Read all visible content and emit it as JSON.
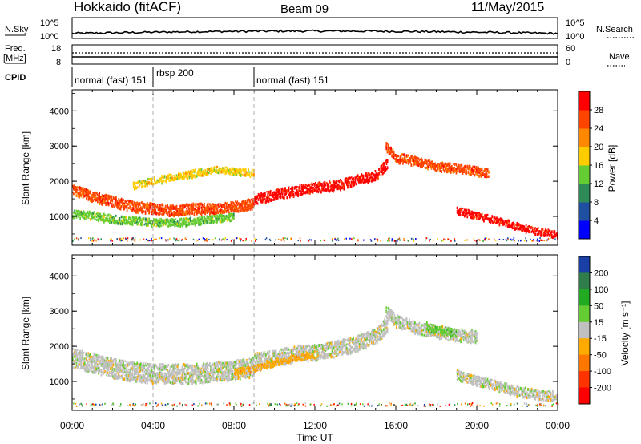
{
  "header": {
    "station": "Hokkaido (fitACF)",
    "beam": "Beam 09",
    "date": "11/May/2015"
  },
  "strips": {
    "nsky_label": "N.Sky",
    "nsearch_label": "N.Search",
    "nsky_ticks": [
      "10^5",
      "10^0"
    ],
    "nsky_right_ticks": [
      "10^5",
      "10^0"
    ],
    "freq_label": "Freq.",
    "freq_unit": "[MHz]",
    "freq_ticks": [
      "18",
      "8"
    ],
    "nave_label": "Nave",
    "nave_ticks": [
      "60",
      "0"
    ],
    "cpid_label": "CPID",
    "cpid_segments": [
      {
        "label": "normal (fast) 151",
        "start_hr": 0
      },
      {
        "label": "rbsp 200",
        "start_hr": 4
      },
      {
        "label": "normal (fast) 151",
        "start_hr": 9
      }
    ]
  },
  "chart_data": [
    {
      "type": "heatmap",
      "name": "power-panel",
      "ylabel": "Slant Range [km]",
      "yticks": [
        1000,
        2000,
        3000,
        4000
      ],
      "ylim": [
        180,
        4600
      ],
      "xlim": [
        0,
        24
      ],
      "colorbar": {
        "label": "Power [dB]",
        "ticks": [
          "4",
          "8",
          "12",
          "16",
          "20",
          "24",
          "28"
        ],
        "colors": [
          "#0000ff",
          "#1f4fa0",
          "#2e8b57",
          "#66cc33",
          "#ffcc00",
          "#ff8800",
          "#ff4400",
          "#ff0000"
        ]
      },
      "bands": [
        {
          "x": [
            0,
            1,
            2,
            3,
            4,
            5,
            6,
            7,
            8,
            9
          ],
          "y": [
            1800,
            1600,
            1450,
            1300,
            1250,
            1200,
            1250,
            1250,
            1300,
            1400
          ],
          "width": 300,
          "color_index": 6
        },
        {
          "x": [
            0,
            1,
            2,
            3,
            4,
            5,
            6,
            7,
            8
          ],
          "y": [
            1100,
            1050,
            950,
            900,
            850,
            850,
            900,
            950,
            1000
          ],
          "width": 220,
          "color_index": 3
        },
        {
          "x": [
            9,
            10,
            11,
            12,
            13,
            14,
            15,
            15.6
          ],
          "y": [
            1500,
            1650,
            1750,
            1850,
            1900,
            2050,
            2200,
            2550
          ],
          "width": 280,
          "color_index": 7
        },
        {
          "x": [
            15.5,
            16,
            17,
            18,
            19,
            20,
            20.6
          ],
          "y": [
            3000,
            2700,
            2600,
            2450,
            2400,
            2300,
            2250
          ],
          "width": 260,
          "color_index": 6
        },
        {
          "x": [
            19,
            20,
            21,
            22,
            23,
            24
          ],
          "y": [
            1200,
            1050,
            900,
            750,
            600,
            500
          ],
          "width": 200,
          "color_index": 7
        },
        {
          "x": [
            3,
            4,
            5,
            6,
            7,
            8,
            9
          ],
          "y": [
            1900,
            2050,
            2150,
            2250,
            2350,
            2300,
            2250
          ],
          "width": 200,
          "color_index": 4
        }
      ]
    },
    {
      "type": "heatmap",
      "name": "velocity-panel",
      "ylabel": "Slant Range [km]",
      "yticks": [
        1000,
        2000,
        3000,
        4000
      ],
      "ylim": [
        180,
        4600
      ],
      "xlim": [
        0,
        24
      ],
      "colorbar": {
        "label": "Velocity [m s⁻¹]",
        "ticks": [
          "200",
          "100",
          "50",
          "15",
          "-15",
          "-50",
          "-100",
          "-200"
        ],
        "colors": [
          "#1a3fa6",
          "#2e7d4a",
          "#22aa22",
          "#66cc33",
          "#c0c0c0",
          "#ffaa00",
          "#ff7700",
          "#ff3300",
          "#ff0000"
        ]
      },
      "bands": [
        {
          "x": [
            0,
            1,
            2,
            3,
            4,
            5,
            6,
            7,
            8,
            9
          ],
          "y": [
            1700,
            1550,
            1400,
            1300,
            1250,
            1250,
            1250,
            1300,
            1350,
            1450
          ],
          "width": 550,
          "color_index": 4
        },
        {
          "x": [
            9,
            10,
            11,
            12,
            13,
            14,
            15,
            15.6
          ],
          "y": [
            1600,
            1700,
            1800,
            1850,
            1950,
            2100,
            2300,
            2700
          ],
          "width": 450,
          "color_index": 4
        },
        {
          "x": [
            8,
            9,
            10,
            11,
            12
          ],
          "y": [
            1300,
            1400,
            1550,
            1700,
            1800
          ],
          "width": 180,
          "color_index": 5
        },
        {
          "x": [
            15.5,
            16,
            17,
            18,
            19,
            20
          ],
          "y": [
            3000,
            2750,
            2550,
            2450,
            2350,
            2300
          ],
          "width": 350,
          "color_index": 4
        },
        {
          "x": [
            17.5,
            18,
            18.5,
            19
          ],
          "y": [
            2600,
            2500,
            2450,
            2400
          ],
          "width": 220,
          "color_index": 3
        },
        {
          "x": [
            19,
            20,
            21,
            22,
            23,
            24
          ],
          "y": [
            1200,
            1050,
            900,
            750,
            650,
            600
          ],
          "width": 280,
          "color_index": 4
        }
      ]
    }
  ],
  "xaxis": {
    "ticks": [
      "00:00",
      "04:00",
      "08:00",
      "12:00",
      "16:00",
      "20:00",
      "00:00"
    ],
    "label": "Time UT"
  }
}
